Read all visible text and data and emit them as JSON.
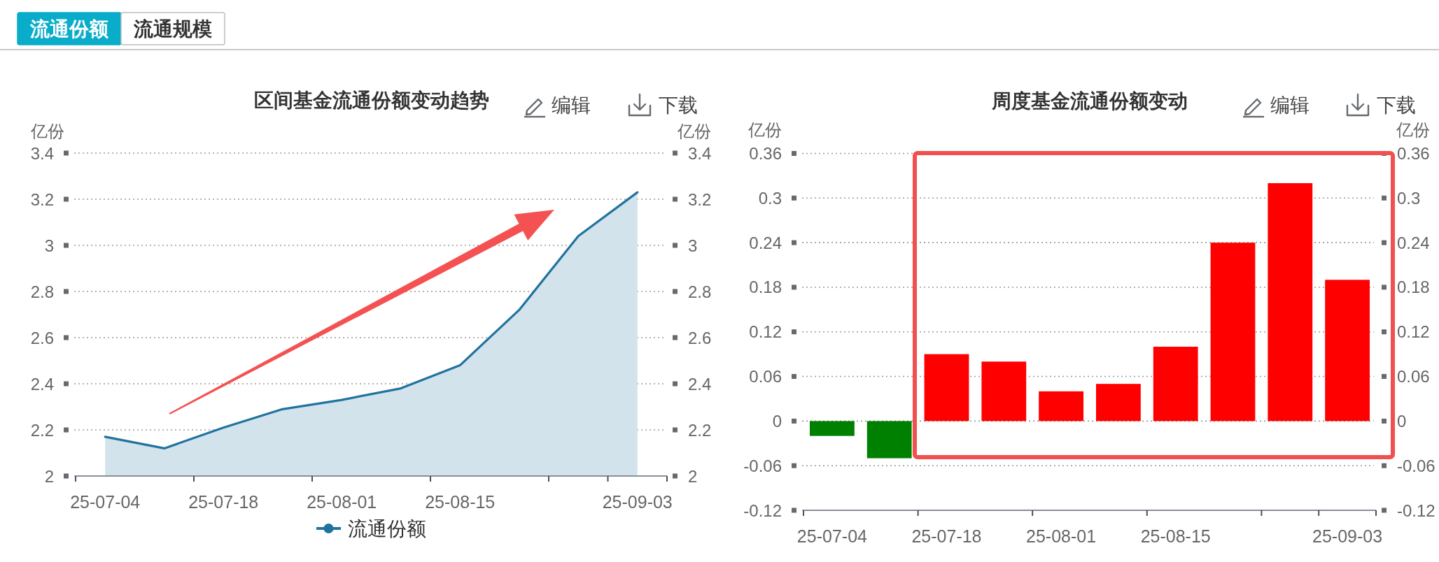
{
  "chart_data": [
    {
      "type": "other",
      "annotations": [
        "流通份额",
        "流通规模"
      ]
    },
    {
      "type": "area",
      "title": "区间基金流通份额变动趋势",
      "ylabel": "亿份",
      "y2label": "亿份",
      "annotations": [
        "编辑",
        "下载"
      ],
      "categories": [
        "25-07-04",
        null,
        "25-07-18",
        null,
        "25-08-01",
        null,
        "25-08-15",
        null,
        null,
        "25-09-03"
      ],
      "series": [
        {
          "name": "流通份额",
          "color": "#21739f",
          "values": [
            2.17,
            2.12,
            2.21,
            2.29,
            2.33,
            2.38,
            2.48,
            2.72,
            3.04,
            3.23
          ]
        }
      ],
      "ylim": [
        2,
        3.4
      ],
      "yticks": [
        2,
        2.2,
        2.4,
        2.6,
        2.8,
        3,
        3.2,
        3.4
      ],
      "y2lim": [
        2,
        3.4
      ],
      "y2ticks": [
        2,
        2.2,
        2.4,
        2.6,
        2.8,
        3,
        3.2,
        3.4
      ],
      "grid": "y",
      "legend": "bottom"
    },
    {
      "type": "bar",
      "title": "周度基金流通份额变动",
      "ylabel": "亿份",
      "y2label": "亿份",
      "annotations": [
        "编辑",
        "下载"
      ],
      "categories": [
        "25-07-04",
        null,
        "25-07-18",
        null,
        "25-08-01",
        null,
        "25-08-15",
        null,
        null,
        "25-09-03"
      ],
      "values": [
        -0.02,
        -0.05,
        0.09,
        0.08,
        0.04,
        0.05,
        0.1,
        0.24,
        0.32,
        0.19
      ],
      "colors": [
        "#008000",
        "#008000",
        "#ff0000",
        "#ff0000",
        "#ff0000",
        "#ff0000",
        "#ff0000",
        "#ff0000",
        "#ff0000",
        "#ff0000"
      ],
      "ylim": [
        -0.12,
        0.36
      ],
      "yticks": [
        -0.12,
        -0.06,
        0,
        0.06,
        0.12,
        0.18,
        0.24,
        0.3,
        0.36
      ],
      "y2lim": [
        -0.12,
        0.36
      ],
      "y2ticks": [
        -0.12,
        -0.06,
        0,
        0.06,
        0.12,
        0.18,
        0.24,
        0.3,
        0.36
      ],
      "grid": "y"
    }
  ]
}
